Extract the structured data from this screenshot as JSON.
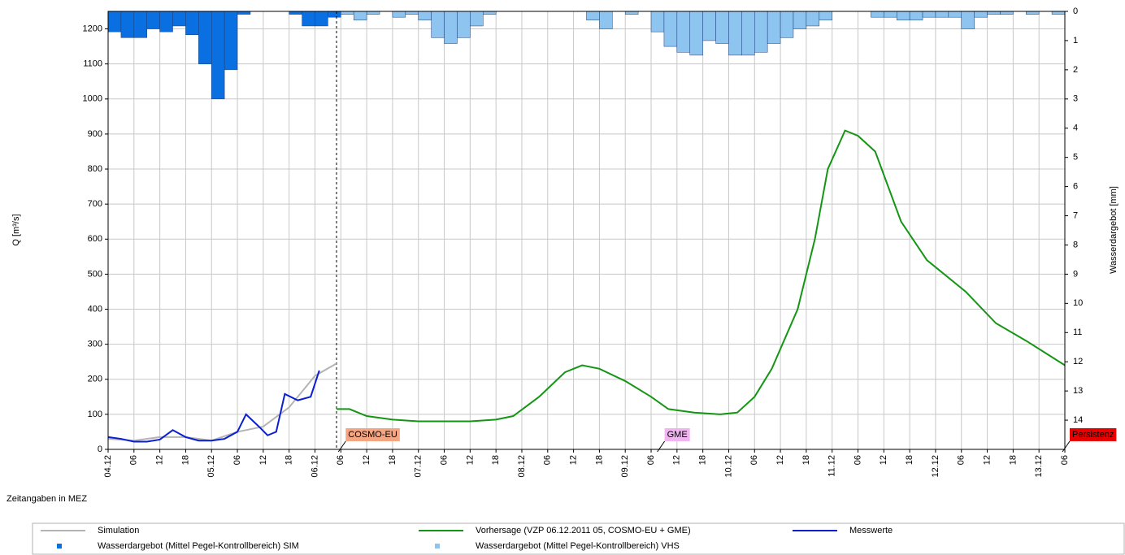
{
  "chart_data": {
    "type": "line",
    "xlabel": "Zeitangaben in MEZ",
    "ylabel": "Q [m³/s]",
    "y2label": "Wasserdargebot [mm]",
    "xlim": [
      0,
      222
    ],
    "xticks": [
      {
        "value": 0,
        "label": "04.12"
      },
      {
        "value": 6,
        "label": "06"
      },
      {
        "value": 12,
        "label": "12"
      },
      {
        "value": 18,
        "label": "18"
      },
      {
        "value": 24,
        "label": "05.12"
      },
      {
        "value": 30,
        "label": "06"
      },
      {
        "value": 36,
        "label": "12"
      },
      {
        "value": 42,
        "label": "18"
      },
      {
        "value": 48,
        "label": "06.12"
      },
      {
        "value": 54,
        "label": "06"
      },
      {
        "value": 60,
        "label": "12"
      },
      {
        "value": 66,
        "label": "18"
      },
      {
        "value": 72,
        "label": "07.12"
      },
      {
        "value": 78,
        "label": "06"
      },
      {
        "value": 84,
        "label": "12"
      },
      {
        "value": 90,
        "label": "18"
      },
      {
        "value": 96,
        "label": "08.12"
      },
      {
        "value": 102,
        "label": "06"
      },
      {
        "value": 108,
        "label": "12"
      },
      {
        "value": 114,
        "label": "18"
      },
      {
        "value": 120,
        "label": "09.12"
      },
      {
        "value": 126,
        "label": "06"
      },
      {
        "value": 132,
        "label": "12"
      },
      {
        "value": 138,
        "label": "18"
      },
      {
        "value": 144,
        "label": "10.12"
      },
      {
        "value": 150,
        "label": "06"
      },
      {
        "value": 156,
        "label": "12"
      },
      {
        "value": 162,
        "label": "18"
      },
      {
        "value": 168,
        "label": "11.12"
      },
      {
        "value": 174,
        "label": "06"
      },
      {
        "value": 180,
        "label": "12"
      },
      {
        "value": 186,
        "label": "18"
      },
      {
        "value": 192,
        "label": "12.12"
      },
      {
        "value": 198,
        "label": "06"
      },
      {
        "value": 204,
        "label": "12"
      },
      {
        "value": 210,
        "label": "18"
      },
      {
        "value": 216,
        "label": "13.12"
      },
      {
        "value": 222,
        "label": "06"
      }
    ],
    "ylim": [
      0,
      1250
    ],
    "yticks": [
      0,
      100,
      200,
      300,
      400,
      500,
      600,
      700,
      800,
      900,
      1000,
      1100,
      1200
    ],
    "y2lim": [
      0,
      15
    ],
    "y2_inverted": true,
    "y2ticks": [
      0,
      1,
      2,
      3,
      4,
      5,
      6,
      7,
      8,
      9,
      10,
      11,
      12,
      13,
      14
    ],
    "grid": true,
    "forecast_start": 53,
    "series": [
      {
        "name": "Simulation",
        "type": "line",
        "color": "#b4b4b4",
        "x": [
          0,
          6,
          12,
          18,
          24,
          30,
          36,
          42,
          48,
          53
        ],
        "values": [
          30,
          25,
          35,
          35,
          25,
          50,
          65,
          120,
          210,
          245
        ]
      },
      {
        "name": "Vorhersage (VZP 06.12.2011 05, COSMO-EU + GME)",
        "type": "line",
        "color": "#149614",
        "x": [
          53,
          56,
          60,
          66,
          72,
          84,
          90,
          94,
          100,
          106,
          110,
          114,
          120,
          126,
          130,
          136,
          142,
          146,
          150,
          154,
          160,
          164,
          167,
          171,
          174,
          178,
          184,
          190,
          199,
          206,
          213,
          222
        ],
        "values": [
          115,
          115,
          95,
          85,
          80,
          80,
          85,
          95,
          150,
          220,
          240,
          230,
          195,
          150,
          115,
          105,
          100,
          105,
          150,
          230,
          400,
          600,
          800,
          910,
          895,
          850,
          650,
          540,
          450,
          360,
          310,
          240
        ]
      },
      {
        "name": "Messwerte",
        "type": "line",
        "color": "#0a1ed2",
        "x": [
          0,
          3,
          6,
          9,
          12,
          15,
          18,
          21,
          24,
          27,
          30,
          32,
          35,
          37,
          39,
          41,
          44,
          47,
          49
        ],
        "values": [
          35,
          30,
          22,
          22,
          28,
          55,
          35,
          25,
          25,
          30,
          50,
          100,
          65,
          40,
          50,
          158,
          140,
          150,
          225
        ]
      },
      {
        "name": "Wasserdargebot (Mittel Pegel-Kontrollbereich) SIM",
        "type": "bar",
        "axis": "y2",
        "color": "#0a6fe0",
        "x": [
          0,
          3,
          6,
          9,
          12,
          15,
          18,
          21,
          24,
          27,
          30,
          42,
          45,
          48,
          51
        ],
        "values": [
          0.7,
          0.9,
          0.9,
          0.6,
          0.7,
          0.5,
          0.8,
          1.8,
          3.0,
          2.0,
          0.1,
          0.1,
          0.5,
          0.5,
          0.2
        ]
      },
      {
        "name": "Wasserdargebot (Mittel Pegel-Kontrollbereich) VHS",
        "type": "bar",
        "axis": "y2",
        "color": "#8ec4f0",
        "x": [
          54,
          57,
          60,
          66,
          69,
          72,
          75,
          78,
          81,
          84,
          87,
          111,
          114,
          120,
          126,
          129,
          132,
          135,
          138,
          141,
          144,
          147,
          150,
          153,
          156,
          159,
          162,
          165,
          177,
          180,
          183,
          186,
          189,
          192,
          195,
          198,
          201,
          204,
          207,
          213,
          219
        ],
        "values": [
          0.1,
          0.3,
          0.1,
          0.2,
          0.1,
          0.3,
          0.9,
          1.1,
          0.9,
          0.5,
          0.1,
          0.3,
          0.6,
          0.1,
          0.7,
          1.2,
          1.4,
          1.5,
          1.0,
          1.1,
          1.5,
          1.5,
          1.4,
          1.1,
          0.9,
          0.6,
          0.5,
          0.3,
          0.2,
          0.2,
          0.3,
          0.3,
          0.2,
          0.2,
          0.2,
          0.6,
          0.2,
          0.1,
          0.1,
          0.1,
          0.1
        ]
      }
    ],
    "annotations": [
      {
        "text": "COSMO-EU",
        "x": 54,
        "color": "#f4a582"
      },
      {
        "text": "GME",
        "x": 128,
        "color": "#f0b4f0"
      },
      {
        "text": "Persistenz",
        "x": 222,
        "color": "#e60000"
      }
    ]
  }
}
